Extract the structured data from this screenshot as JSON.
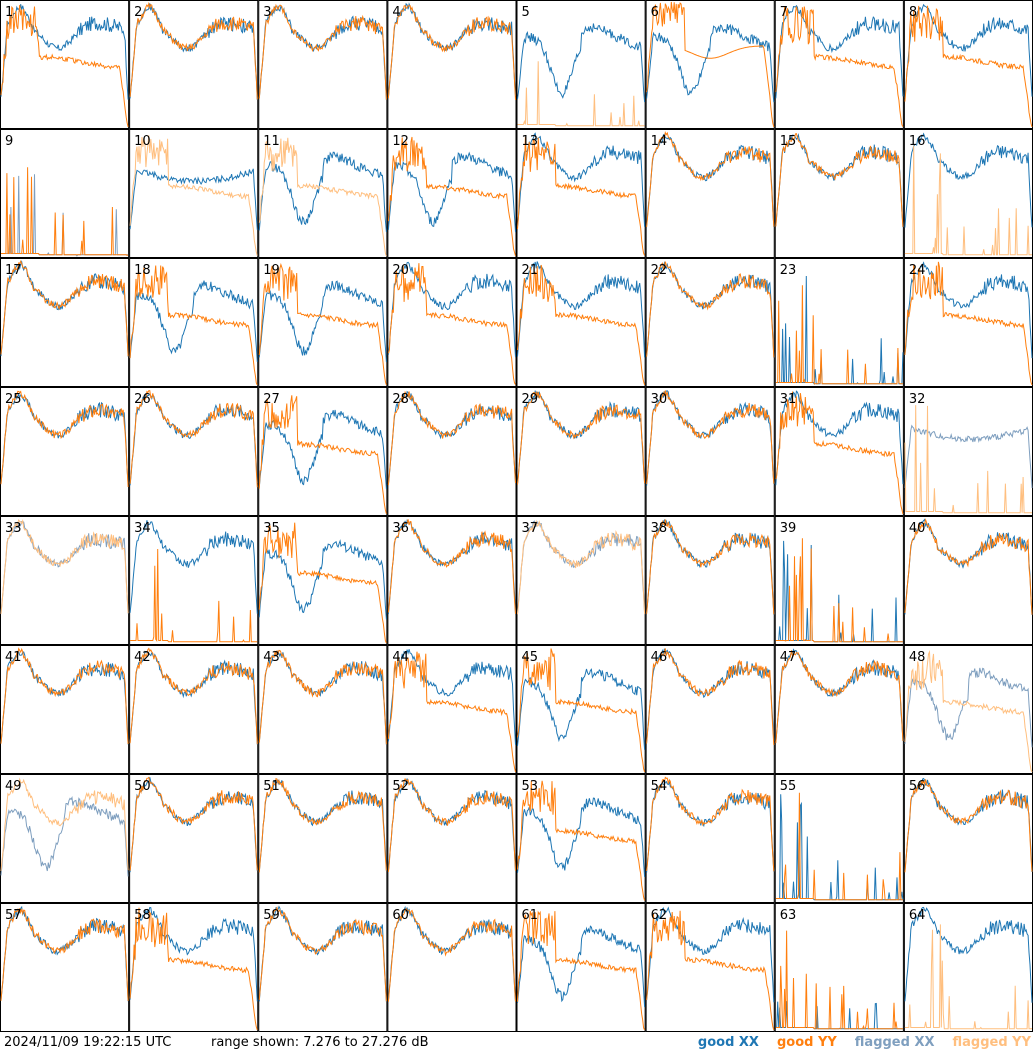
{
  "timestamp": "2024/11/09 19:22:15 UTC",
  "range_label": "range shown: 7.276 to 27.276 dB",
  "legend": [
    {
      "label": "good XX",
      "color": "#1f77b4"
    },
    {
      "label": "good YY",
      "color": "#ff7f0e"
    },
    {
      "label": "flagged XX",
      "color": "#7f9fbf"
    },
    {
      "label": "flagged YY",
      "color": "#ffbf7f"
    }
  ],
  "chart_data": {
    "type": "line",
    "layout": "small-multiples",
    "rows": 8,
    "cols": 8,
    "y_range_db": [
      7.276,
      27.276
    ],
    "panel_labels": [
      "1",
      "2",
      "3",
      "4",
      "5",
      "6",
      "7",
      "8",
      "9",
      "10",
      "11",
      "12",
      "13",
      "14",
      "15",
      "16",
      "17",
      "18",
      "19",
      "20",
      "21",
      "22",
      "23",
      "24",
      "25",
      "26",
      "27",
      "28",
      "29",
      "30",
      "31",
      "32",
      "33",
      "34",
      "35",
      "36",
      "37",
      "38",
      "39",
      "40",
      "41",
      "42",
      "43",
      "44",
      "45",
      "46",
      "47",
      "48",
      "49",
      "50",
      "51",
      "52",
      "53",
      "54",
      "55",
      "56",
      "57",
      "58",
      "59",
      "60",
      "61",
      "62",
      "63",
      "64"
    ],
    "xx_flagged": [
      9,
      32,
      33,
      37,
      48,
      49
    ],
    "yy_flagged": [
      5,
      10,
      11,
      16,
      32,
      33,
      37,
      48,
      49,
      64
    ],
    "xx_profiles": {
      "normal": [
        1,
        2,
        3,
        4,
        7,
        8,
        13,
        14,
        15,
        16,
        17,
        20,
        21,
        22,
        24,
        25,
        26,
        28,
        29,
        30,
        31,
        33,
        34,
        36,
        37,
        38,
        40,
        41,
        42,
        43,
        44,
        46,
        47,
        50,
        51,
        52,
        54,
        56,
        57,
        58,
        59,
        60,
        62,
        64
      ],
      "deep_dip": [
        5,
        6,
        11,
        12,
        18,
        19,
        27,
        35,
        45,
        48,
        49,
        53,
        61
      ],
      "spiky_low": [
        9,
        23,
        39,
        55,
        63
      ],
      "flat": [
        10,
        32
      ]
    },
    "yy_profiles": {
      "normal": [
        2,
        3,
        4,
        14,
        15,
        17,
        22,
        25,
        26,
        28,
        29,
        30,
        33,
        36,
        37,
        38,
        40,
        41,
        42,
        43,
        46,
        47,
        49,
        50,
        51,
        52,
        54,
        56,
        57,
        59,
        60
      ],
      "drop_low": [
        1,
        7,
        8,
        10,
        11,
        12,
        13,
        18,
        19,
        20,
        21,
        24,
        27,
        31,
        35,
        44,
        45,
        48,
        53,
        58,
        61,
        62
      ],
      "spiky_low": [
        5,
        9,
        16,
        23,
        32,
        34,
        39,
        55,
        63,
        64
      ],
      "tall_spike": [
        6
      ]
    }
  }
}
